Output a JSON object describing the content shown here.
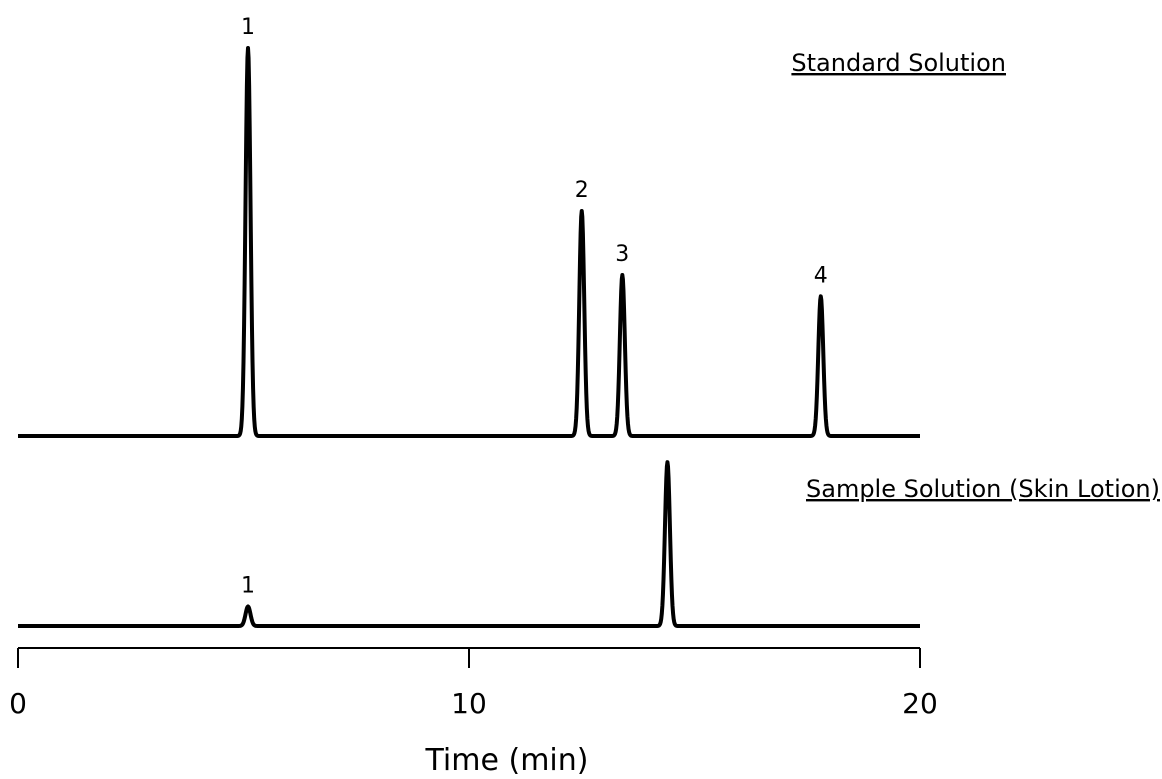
{
  "chart_data": {
    "type": "line",
    "xlabel": "Time (min)",
    "xlim": [
      0,
      20
    ],
    "x_ticks": [
      0,
      10,
      20
    ],
    "traces": [
      {
        "name": "Standard Solution",
        "peaks": [
          {
            "label": "1",
            "time": 5.1,
            "height": 1.0
          },
          {
            "label": "2",
            "time": 12.5,
            "height": 0.58
          },
          {
            "label": "3",
            "time": 13.4,
            "height": 0.415
          },
          {
            "label": "4",
            "time": 17.8,
            "height": 0.36
          }
        ]
      },
      {
        "name": "Sample Solution (Skin Lotion)",
        "peaks": [
          {
            "label": "1",
            "time": 5.1,
            "height": 0.05
          },
          {
            "label": "",
            "time": 14.4,
            "height": 0.42
          }
        ]
      }
    ],
    "colors": {
      "line": "#000000",
      "background": "#ffffff"
    }
  }
}
